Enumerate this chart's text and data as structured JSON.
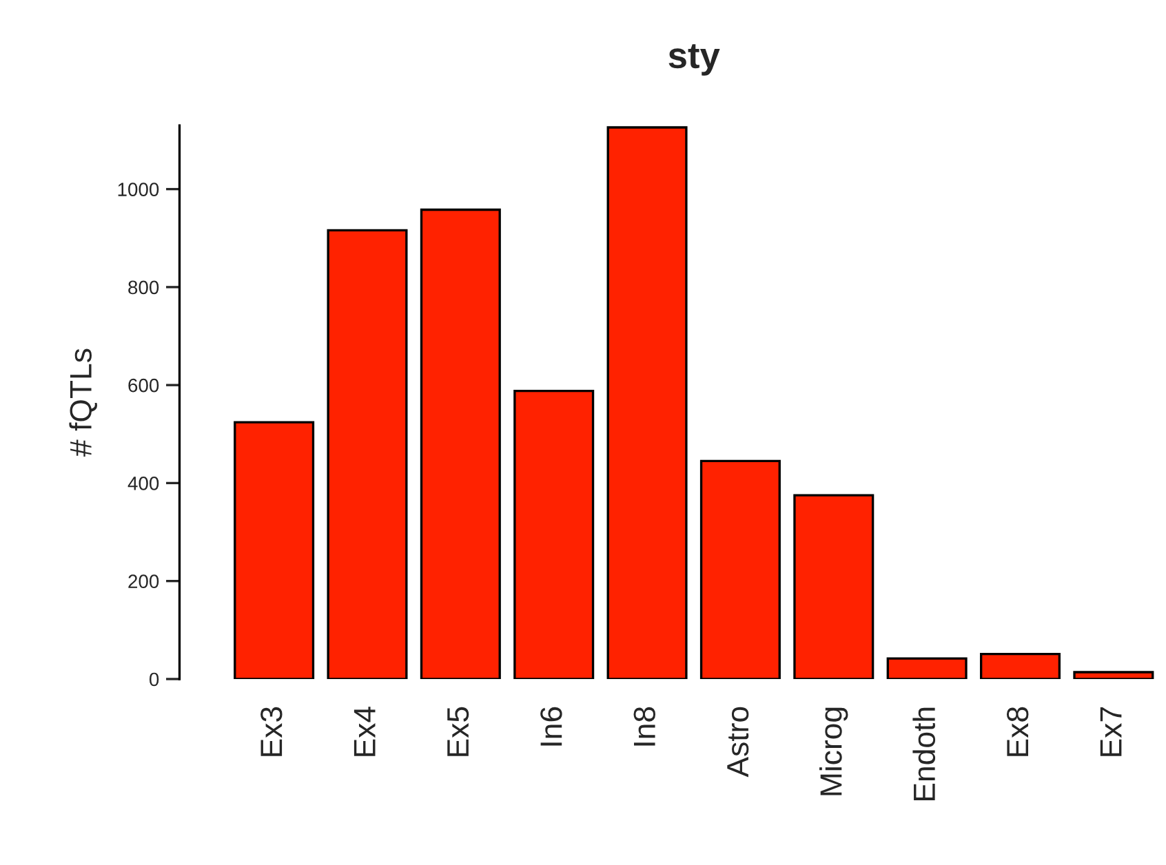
{
  "chart_data": {
    "type": "bar",
    "title": "sty",
    "ylabel": "# fQTLs",
    "categories": [
      "Ex3",
      "Ex4",
      "Ex5",
      "In6",
      "In8",
      "Astro",
      "Microg",
      "Endoth",
      "Ex8",
      "Ex7"
    ],
    "values": [
      524,
      916,
      958,
      588,
      1126,
      445,
      375,
      42,
      51,
      14
    ],
    "color": "#ff2200",
    "ylim": [
      0,
      1130
    ],
    "yticks": [
      0,
      200,
      400,
      600,
      800,
      1000
    ],
    "grid": false,
    "legend": false
  }
}
